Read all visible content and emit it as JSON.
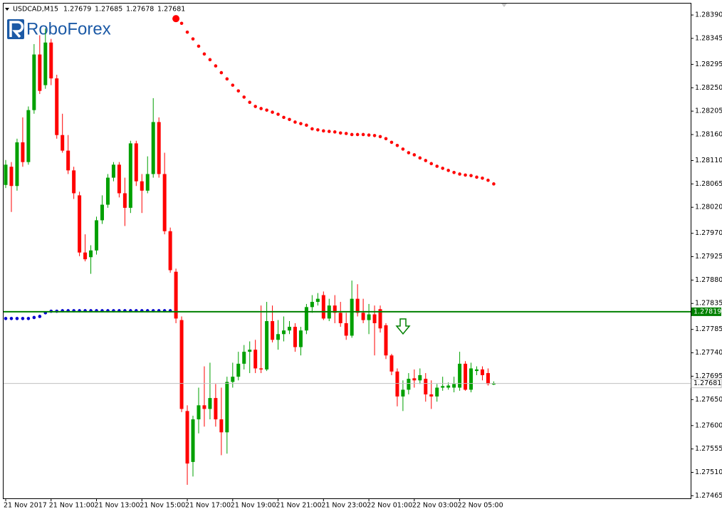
{
  "chart_data": {
    "type": "candlestick",
    "title": "USDCAD,M15",
    "logo": "RoboForex",
    "bull_color": "#00a000",
    "bear_color": "#ff0000",
    "ylim": [
      1.2746,
      1.28412
    ],
    "yticks": [
      {
        "value": 1.2839,
        "label": "1.28390"
      },
      1.28345,
      1.28295,
      {
        "value": 1.2825,
        "label": "1.28250"
      },
      1.28205,
      {
        "value": 1.2816,
        "label": "1.28160"
      },
      {
        "value": 1.2811,
        "label": "1.28110"
      },
      1.28065,
      {
        "value": 1.2802,
        "label": "1.28020"
      },
      {
        "value": 1.2797,
        "label": "1.27970"
      },
      1.27925,
      {
        "value": 1.2788,
        "label": "1.27880"
      },
      1.27835,
      1.27785,
      {
        "value": 1.2774,
        "label": "1.27740"
      },
      1.27695,
      {
        "value": 1.2765,
        "label": "1.27650"
      },
      {
        "value": 1.276,
        "label": "1.27600"
      },
      1.27555,
      {
        "value": 1.2751,
        "label": "1.27510"
      },
      1.27465
    ],
    "categories": [
      "21 Nov 2017",
      null,
      null,
      null,
      null,
      null,
      null,
      null,
      "21 Nov 11:00",
      null,
      null,
      null,
      null,
      null,
      null,
      null,
      "21 Nov 13:00",
      null,
      null,
      null,
      null,
      null,
      null,
      null,
      "21 Nov 15:00",
      null,
      null,
      null,
      null,
      null,
      null,
      null,
      "21 Nov 17:00",
      null,
      null,
      null,
      null,
      null,
      null,
      null,
      "21 Nov 19:00",
      null,
      null,
      null,
      null,
      null,
      null,
      null,
      "21 Nov 21:00",
      null,
      null,
      null,
      null,
      null,
      null,
      null,
      "21 Nov 23:00",
      null,
      null,
      null,
      null,
      null,
      null,
      null,
      "22 Nov 01:00",
      null,
      null,
      null,
      null,
      null,
      null,
      null,
      "22 Nov 03:00",
      null,
      null,
      null,
      null,
      null,
      null,
      null,
      "22 Nov 05:00",
      null,
      null,
      null,
      null,
      null,
      null
    ],
    "open": [
      1.28063,
      1.28098,
      1.28061,
      1.28145,
      1.28107,
      1.28207,
      1.28314,
      1.28255,
      1.28337,
      1.28268,
      1.28159,
      1.28129,
      1.28091,
      1.28043,
      1.27933,
      1.27924,
      1.27937,
      1.27995,
      1.28025,
      1.28077,
      1.28102,
      1.28047,
      1.28019,
      1.28143,
      1.2807,
      1.28052,
      1.28084,
      1.28184,
      1.28084,
      1.27974,
      1.27896,
      1.27803,
      1.27628,
      1.2753,
      1.27612,
      1.27639,
      1.27632,
      1.27653,
      1.27612,
      1.27587,
      1.27684,
      1.27694,
      1.27719,
      1.27742,
      1.27746,
      1.2771,
      1.27708,
      1.27801,
      1.27765,
      1.27776,
      1.27783,
      1.2779,
      1.27751,
      1.27783,
      1.27828,
      1.27838,
      1.27851,
      1.27806,
      1.27831,
      1.27817,
      1.27797,
      1.27773,
      1.27844,
      1.27817,
      1.27803,
      1.27814,
      1.27824,
      1.27793,
      1.27735,
      1.27704,
      1.27656,
      1.27669,
      1.27691,
      1.27687,
      1.2769,
      1.2766,
      1.27656,
      1.27673,
      1.27673,
      1.27673,
      1.27673,
      1.27719,
      1.27669,
      1.27705,
      1.27708,
      1.27701,
      1.27679
    ],
    "high": [
      1.28111,
      1.28107,
      1.28152,
      1.28193,
      1.28214,
      1.28334,
      1.28351,
      1.28364,
      1.28344,
      1.28275,
      1.282,
      1.28159,
      1.28098,
      1.2805,
      1.27968,
      1.27947,
      1.28002,
      1.28043,
      1.28084,
      1.28107,
      1.28107,
      1.28077,
      1.28148,
      1.28148,
      1.28084,
      1.28118,
      1.2823,
      1.28193,
      1.28125,
      1.27981,
      1.27902,
      1.2781,
      1.27639,
      1.27619,
      1.27673,
      1.27714,
      1.27721,
      1.2768,
      1.27673,
      1.27694,
      1.27721,
      1.27742,
      1.27755,
      1.27762,
      1.27765,
      1.27831,
      1.27838,
      1.27831,
      1.27803,
      1.2781,
      1.27801,
      1.27797,
      1.2779,
      1.27834,
      1.27851,
      1.27855,
      1.27858,
      1.27844,
      1.27851,
      1.27838,
      1.27817,
      1.27879,
      1.27872,
      1.27844,
      1.27834,
      1.27831,
      1.27831,
      1.27797,
      1.27738,
      1.2771,
      1.27687,
      1.27701,
      1.27708,
      1.2771,
      1.27701,
      1.27687,
      1.2768,
      1.27694,
      1.27683,
      1.27694,
      1.27742,
      1.27724,
      1.27721,
      1.27714,
      1.27714,
      1.2771,
      1.27685
    ],
    "low": [
      1.28057,
      1.28011,
      1.28052,
      1.28098,
      1.28102,
      1.282,
      1.28238,
      1.28248,
      1.28255,
      1.28152,
      1.28125,
      1.28084,
      1.28036,
      1.27926,
      1.27916,
      1.27892,
      1.27929,
      1.27988,
      1.28019,
      1.2807,
      1.28039,
      1.27984,
      1.28009,
      1.28061,
      1.28009,
      1.28047,
      1.28077,
      1.28077,
      1.27968,
      1.27894,
      1.27797,
      1.27626,
      1.27486,
      1.27502,
      1.27585,
      1.27598,
      1.27612,
      1.27598,
      1.27543,
      1.27546,
      1.27673,
      1.27687,
      1.27708,
      1.27701,
      1.27701,
      1.27701,
      1.27705,
      1.2776,
      1.27746,
      1.27762,
      1.27776,
      1.27742,
      1.27735,
      1.27776,
      1.27817,
      1.27831,
      1.27803,
      1.27801,
      1.27797,
      1.2779,
      1.27765,
      1.27769,
      1.2781,
      1.27797,
      1.27776,
      1.27735,
      1.27779,
      1.27728,
      1.27697,
      1.27637,
      1.27628,
      1.2766,
      1.27673,
      1.2768,
      1.27646,
      1.27632,
      1.27646,
      1.27667,
      1.27669,
      1.27664,
      1.27667,
      1.27667,
      1.27664,
      1.27697,
      1.27687,
      1.27677,
      1.27678
    ],
    "close": [
      1.28102,
      1.28061,
      1.28145,
      1.28107,
      1.28207,
      1.28314,
      1.28244,
      1.28337,
      1.28268,
      1.28159,
      1.28129,
      1.28091,
      1.28047,
      1.27933,
      1.2792,
      1.27937,
      1.27995,
      1.28025,
      1.28077,
      1.28102,
      1.28047,
      1.28019,
      1.28143,
      1.2807,
      1.28052,
      1.28084,
      1.28184,
      1.28084,
      1.27974,
      1.27899,
      1.27806,
      1.27632,
      1.27527,
      1.27612,
      1.27639,
      1.27632,
      1.27653,
      1.27612,
      1.27587,
      1.27684,
      1.27694,
      1.27719,
      1.27742,
      1.27746,
      1.2771,
      1.27708,
      1.27801,
      1.27765,
      1.27776,
      1.27783,
      1.2779,
      1.27751,
      1.27783,
      1.27828,
      1.27838,
      1.27844,
      1.27806,
      1.27831,
      1.27817,
      1.27797,
      1.27773,
      1.27844,
      1.27817,
      1.27803,
      1.27814,
      1.27797,
      1.27787,
      1.27735,
      1.27704,
      1.27656,
      1.27669,
      1.2769,
      1.27687,
      1.27697,
      1.2766,
      1.27656,
      1.27673,
      1.27676,
      1.27677,
      1.2768,
      1.27719,
      1.27669,
      1.2771,
      1.27708,
      1.27697,
      1.2768,
      1.27681
    ],
    "dots": [
      {
        "color": "#0000cd",
        "values": [
          1.27806,
          1.27806,
          1.27806,
          1.27806,
          1.27806,
          1.27808,
          1.2781,
          1.27817,
          1.2782,
          1.2782,
          1.27821,
          1.27821,
          1.27821,
          1.27821,
          1.27821,
          1.27821,
          1.27821,
          1.27821,
          1.27821,
          1.27821,
          1.27821,
          1.27821,
          1.27821,
          1.27821,
          1.27821,
          1.27821,
          1.27821,
          1.27821,
          1.27821,
          1.27821,
          null,
          null,
          null,
          null,
          null,
          null,
          null,
          null,
          null,
          null,
          null,
          null,
          null,
          null,
          null,
          null,
          null,
          null,
          null,
          null,
          null,
          null,
          null,
          null,
          null,
          null,
          null,
          null,
          null,
          null,
          null,
          null,
          null,
          null,
          null,
          null,
          null,
          null,
          null,
          null,
          null,
          null,
          null,
          null,
          null,
          null,
          null,
          null,
          null,
          null,
          null,
          null,
          null,
          null,
          null,
          null,
          null
        ]
      },
      {
        "color": "#ff0000",
        "values": [
          null,
          null,
          null,
          null,
          null,
          null,
          null,
          null,
          null,
          null,
          null,
          null,
          null,
          null,
          null,
          null,
          null,
          null,
          null,
          null,
          null,
          null,
          null,
          null,
          null,
          null,
          null,
          null,
          null,
          null,
          1.28383,
          1.28374,
          1.28357,
          1.28344,
          1.2833,
          1.28315,
          1.28304,
          1.28292,
          1.28279,
          1.28267,
          1.28255,
          1.28244,
          1.28232,
          1.28222,
          1.28214,
          1.2821,
          1.28207,
          1.28203,
          1.28199,
          1.28193,
          1.28189,
          1.28184,
          1.28181,
          1.28178,
          1.28171,
          1.28169,
          1.28167,
          1.28166,
          1.28165,
          1.28163,
          1.28162,
          1.2816,
          1.2816,
          1.2816,
          1.28159,
          1.28158,
          1.28156,
          1.28152,
          1.28145,
          1.28139,
          1.28132,
          1.28125,
          1.28121,
          1.28115,
          1.2811,
          1.28104,
          1.28099,
          1.28095,
          1.28091,
          1.28087,
          1.28084,
          1.28082,
          1.28081,
          1.28078,
          1.28076,
          1.28072,
          1.28065
        ]
      }
    ],
    "level": {
      "value": 1.27819,
      "color": "#008000"
    }
  }
}
